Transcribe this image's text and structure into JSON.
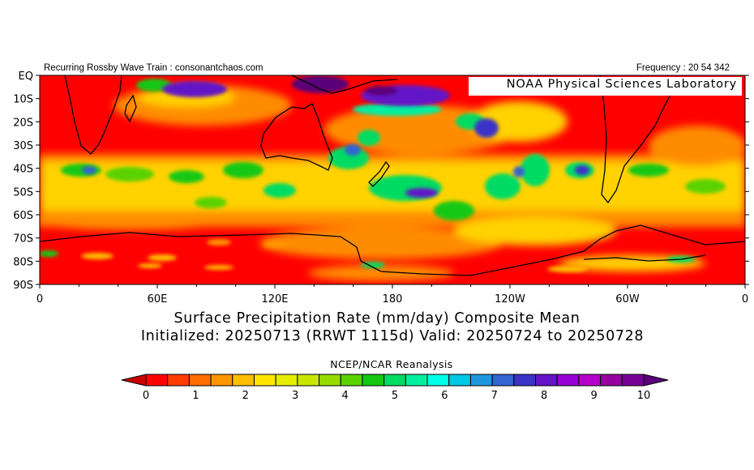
{
  "header": {
    "left_text": "Recurring Rossby Wave Train : consonantchaos.com",
    "right_text": "Frequency : 20 54 342"
  },
  "map": {
    "lab_label": "NOAA Physical Sciences Laboratory",
    "lat_labels": [
      "EQ",
      "10S",
      "20S",
      "30S",
      "40S",
      "50S",
      "60S",
      "70S",
      "80S",
      "90S"
    ],
    "lon_labels": [
      "0",
      "60E",
      "120E",
      "180",
      "120W",
      "60W",
      "0"
    ]
  },
  "title": {
    "line1": "Surface Precipitation Rate (mm/day) Composite Mean",
    "line2": "Initialized: 20250713 (RRWT 1115d) Valid: 20250724 to 20250728"
  },
  "source": "NCEP/NCAR Reanalysis",
  "colorbar": {
    "tick_labels": [
      "0",
      "1",
      "2",
      "3",
      "4",
      "5",
      "6",
      "7",
      "8",
      "9",
      "10"
    ],
    "colors": [
      "#c80000",
      "#ff0000",
      "#ff3c00",
      "#ff6e00",
      "#ff9600",
      "#ffbe00",
      "#ffe600",
      "#e6ee00",
      "#c8e600",
      "#96dc00",
      "#5ad200",
      "#14c814",
      "#00dc64",
      "#00f0a0",
      "#00ffe6",
      "#00c8e6",
      "#1e96dc",
      "#3264d2",
      "#3c32c8",
      "#6414c8",
      "#9600d2",
      "#b400c8",
      "#9600a0",
      "#780096",
      "#5a0078"
    ]
  },
  "colors": {
    "background": "#ff0000",
    "land_outline": "#000000"
  }
}
